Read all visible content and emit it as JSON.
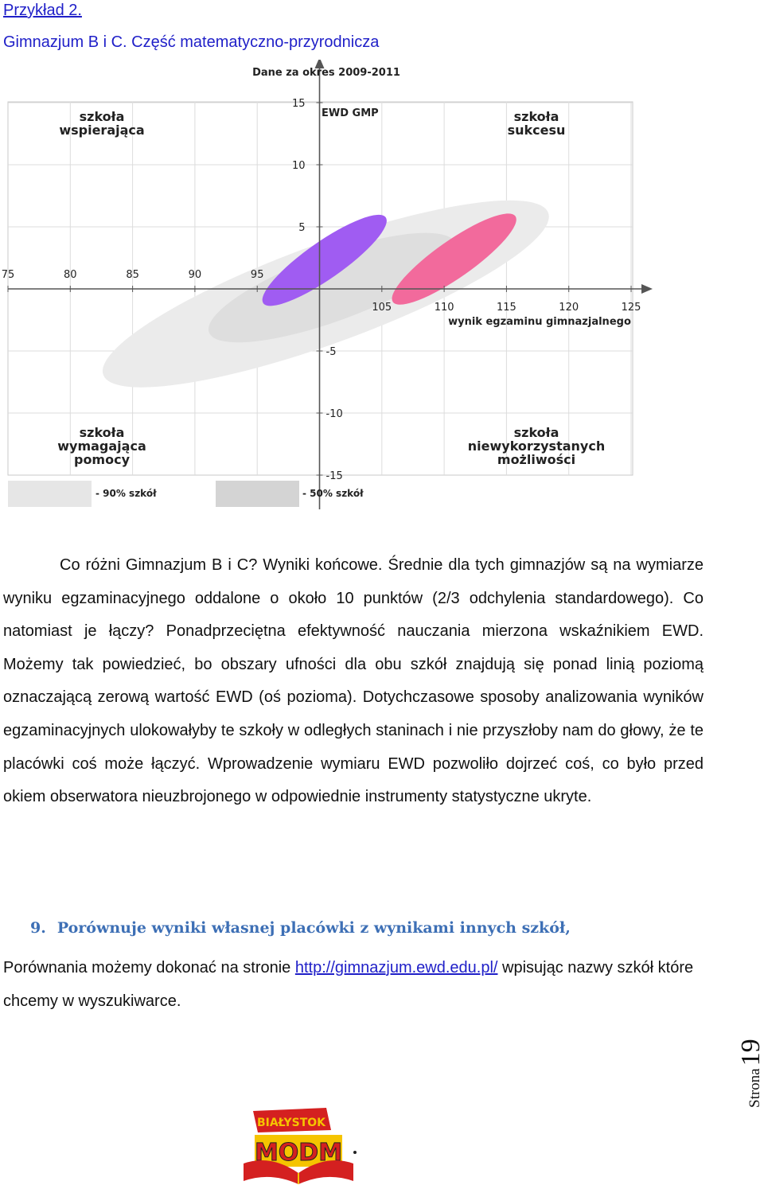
{
  "header": {
    "example_label": "Przykład 2.",
    "subtitle": "Gimnazjum B i C. Część matematyczno-przyrodnicza"
  },
  "chart_data": {
    "type": "scatter",
    "title": "Dane za okres 2009-2011",
    "ylabel": "EWD GMP",
    "xlabel": "wynik egzaminu gimnazjalnego",
    "x_ticks_left": [
      "75",
      "80",
      "85",
      "90",
      "95"
    ],
    "x_ticks_right": [
      "105",
      "110",
      "115",
      "120",
      "125"
    ],
    "y_ticks_top": [
      "15",
      "10",
      "5"
    ],
    "y_ticks_bottom": [
      "-5",
      "-10",
      "-15"
    ],
    "xlim": [
      75,
      128
    ],
    "ylim": [
      -15,
      16
    ],
    "x_axis_crossing_y": 0,
    "y_axis_crossing_x": 100,
    "grid": true,
    "quadrants": {
      "top_left": [
        "szkoła",
        "wspierająca"
      ],
      "top_right": [
        "szkoła",
        "sukcesu"
      ],
      "bottom_left": [
        "szkoła",
        "wymagająca",
        "pomocy"
      ],
      "bottom_right": [
        "szkoła",
        "niewykorzystanych",
        "możliwości"
      ]
    },
    "legend": [
      {
        "label": "- 90% szkół",
        "color": "#e6e6e6"
      },
      {
        "label": "- 50% szkół",
        "color": "#d4d4d4"
      }
    ],
    "schools": [
      {
        "name": "B",
        "cx": 100.4,
        "cy": 2.3,
        "inner_rx": 6.0,
        "inner_ry": 1.5,
        "color": "#a05cf2"
      },
      {
        "name": "C",
        "cx": 110.8,
        "cy": 2.4,
        "inner_rx": 6.0,
        "inner_ry": 1.5,
        "color": "#f26a9c"
      }
    ],
    "population": {
      "outer": {
        "cx": 100.5,
        "cy": -0.4,
        "rx": 19.0,
        "ry": 4.0,
        "color": "#ebebeb"
      },
      "inner": {
        "cx": 101.0,
        "cy": 0.1,
        "rx": 10.5,
        "ry": 2.7,
        "color": "#dedede"
      }
    },
    "tilt_deg": -20
  },
  "paragraph": "Co różni Gimnazjum B i C? Wyniki końcowe. Średnie dla tych gimnazjów są na wymiarze wyniku egzaminacyjnego oddalone o około 10 punktów (2/3 odchylenia standardowego). Co natomiast je łączy? Ponadprzeciętna efektywność nauczania mierzona wskaźnikiem EWD. Możemy tak powiedzieć, bo obszary ufności dla obu szkół znajdują się ponad linią poziomą oznaczającą zerową wartość EWD (oś pozioma). Dotychczasowe sposoby analizowania wyników egzaminacyjnych ulokowałyby te szkoły w odległych staninach i nie przyszłoby nam do głowy, że te placówki coś może łączyć. Wprowadzenie wymiaru EWD pozwoliło dojrzeć coś, co było przed okiem obserwatora nieuzbrojonego w odpowiednie instrumenty statystyczne ukryte.",
  "section": {
    "number": "9.",
    "title": "Porównuje wyniki własnej placówki z wynikami innych szkół,",
    "text_before": "Porównania możemy dokonać na stronie ",
    "link": "http://gimnazjum.ewd.edu.pl/",
    "text_after": " wpisując nazwy szkół  które chcemy w wyszukiwarce."
  },
  "footer": {
    "page_word": "Strona",
    "page_number": "19",
    "logo_top": "BIAŁYSTOK",
    "logo_bottom": "MODM",
    "logo_colors": {
      "red": "#d42020",
      "yellow": "#f5c400",
      "dark": "#222222"
    }
  }
}
